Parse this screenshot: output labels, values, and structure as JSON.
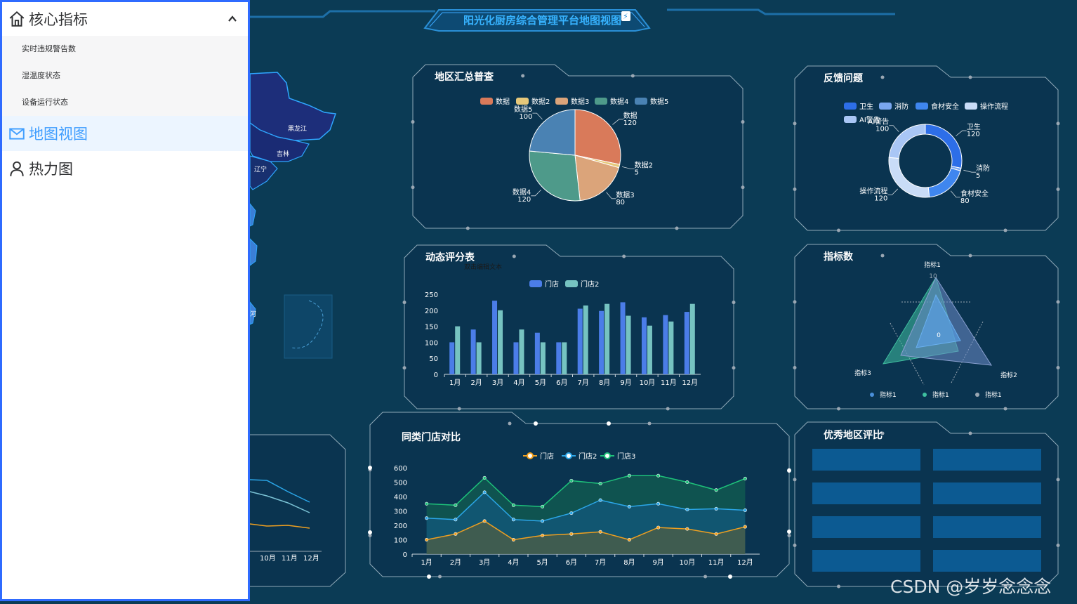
{
  "header": {
    "title": "阳光化厨房综合管理平台地图视图"
  },
  "sidebar": {
    "group": {
      "label": "核心指标",
      "items": [
        {
          "label": "实时违规警告数"
        },
        {
          "label": "湿温度状态"
        },
        {
          "label": "设备运行状态"
        }
      ]
    },
    "items": [
      {
        "label": "地图视图",
        "active": true
      },
      {
        "label": "热力图",
        "active": false
      }
    ]
  },
  "map": {
    "labels": [
      "黑龙江",
      "吉林",
      "辽宁",
      "河"
    ]
  },
  "panels": {
    "pie": {
      "title": "地区汇总普查"
    },
    "feedback": {
      "title": "反馈问题"
    },
    "bars": {
      "title": "动态评分表",
      "edit_hint": "双击编辑文本"
    },
    "radar": {
      "title": "指标数"
    },
    "lines": {
      "title": "同类门店对比"
    },
    "excellent": {
      "title": "优秀地区评比"
    }
  },
  "left_line_ticks": [
    "10月",
    "11月",
    "12月"
  ],
  "watermark": "CSDN @岁岁念念念",
  "colors": {
    "accent": "#409eff",
    "panel_border": "#8fa9b8",
    "bg": "#0b3b55"
  },
  "chart_data": [
    {
      "type": "pie",
      "legend": [
        "数据",
        "数据2",
        "数据3",
        "数据4",
        "数据5"
      ],
      "series": [
        {
          "name": "数据",
          "value": 120,
          "color": "#d97a5a"
        },
        {
          "name": "数据2",
          "value": 5,
          "color": "#e6c87a"
        },
        {
          "name": "数据3",
          "value": 80,
          "color": "#dba47a"
        },
        {
          "name": "数据4",
          "value": 120,
          "color": "#4e9a8a"
        },
        {
          "name": "数据5",
          "value": 100,
          "color": "#4a82b3"
        }
      ],
      "labels": [
        {
          "name": "数据",
          "value": "120"
        },
        {
          "name": "数据2",
          "value": "5"
        },
        {
          "name": "数据3",
          "value": "80"
        },
        {
          "name": "数据4",
          "value": "120"
        },
        {
          "name": "数据5",
          "value": "100"
        }
      ]
    },
    {
      "type": "pie",
      "donut": true,
      "legend": [
        "卫生",
        "消防",
        "食材安全",
        "操作流程",
        "AI警告"
      ],
      "series": [
        {
          "name": "卫生",
          "value": 120,
          "color": "#2d6ee8"
        },
        {
          "name": "消防",
          "value": 5,
          "color": "#7aa7f0"
        },
        {
          "name": "食材安全",
          "value": 80,
          "color": "#3f86ef"
        },
        {
          "name": "操作流程",
          "value": 120,
          "color": "#c9dcf7"
        },
        {
          "name": "AI警告",
          "value": 100,
          "color": "#a9c6f5"
        }
      ],
      "labels": [
        {
          "name": "卫生",
          "value": "120"
        },
        {
          "name": "消防",
          "value": "5"
        },
        {
          "name": "食材安全",
          "value": "80"
        },
        {
          "name": "操作流程",
          "value": "120"
        },
        {
          "name": "AI警告",
          "value": "100"
        }
      ]
    },
    {
      "type": "bar",
      "categories": [
        "1月",
        "2月",
        "3月",
        "4月",
        "5月",
        "6月",
        "7月",
        "8月",
        "9月",
        "10月",
        "11月",
        "12月"
      ],
      "ylim": [
        0,
        250
      ],
      "yticks": [
        "0",
        "50",
        "100",
        "150",
        "200",
        "250"
      ],
      "series": [
        {
          "name": "门店",
          "color": "#4b7de8",
          "values": [
            100,
            140,
            230,
            100,
            130,
            100,
            205,
            198,
            225,
            178,
            185,
            195
          ]
        },
        {
          "name": "门店2",
          "color": "#76c3c1",
          "values": [
            150,
            100,
            200,
            140,
            100,
            100,
            215,
            220,
            183,
            152,
            165,
            220
          ]
        }
      ]
    },
    {
      "type": "radar",
      "indicators": [
        "指标1",
        "指标2",
        "指标3"
      ],
      "max_label": "10",
      "center_label": "0",
      "legend": [
        {
          "name": "指标1",
          "color": "#4a8fd9"
        },
        {
          "name": "指标1",
          "color": "#3fc0a0"
        },
        {
          "name": "指标1",
          "color": "#9aa7b3"
        }
      ]
    },
    {
      "type": "line",
      "categories": [
        "1月",
        "2月",
        "3月",
        "4月",
        "5月",
        "6月",
        "7月",
        "8月",
        "9月",
        "10月",
        "11月",
        "12月"
      ],
      "ylim": [
        0,
        600
      ],
      "yticks": [
        "0",
        "100",
        "200",
        "300",
        "400",
        "500",
        "600"
      ],
      "series": [
        {
          "name": "门店",
          "color": "#f0a020",
          "values": [
            100,
            140,
            230,
            100,
            130,
            140,
            155,
            100,
            185,
            175,
            140,
            190
          ]
        },
        {
          "name": "门店2",
          "color": "#2ba6e8",
          "values": [
            250,
            240,
            430,
            240,
            230,
            285,
            375,
            330,
            350,
            310,
            315,
            305
          ]
        },
        {
          "name": "门店3",
          "color": "#1ec27a",
          "values": [
            350,
            340,
            530,
            340,
            330,
            510,
            490,
            545,
            545,
            500,
            445,
            525
          ]
        }
      ]
    }
  ]
}
